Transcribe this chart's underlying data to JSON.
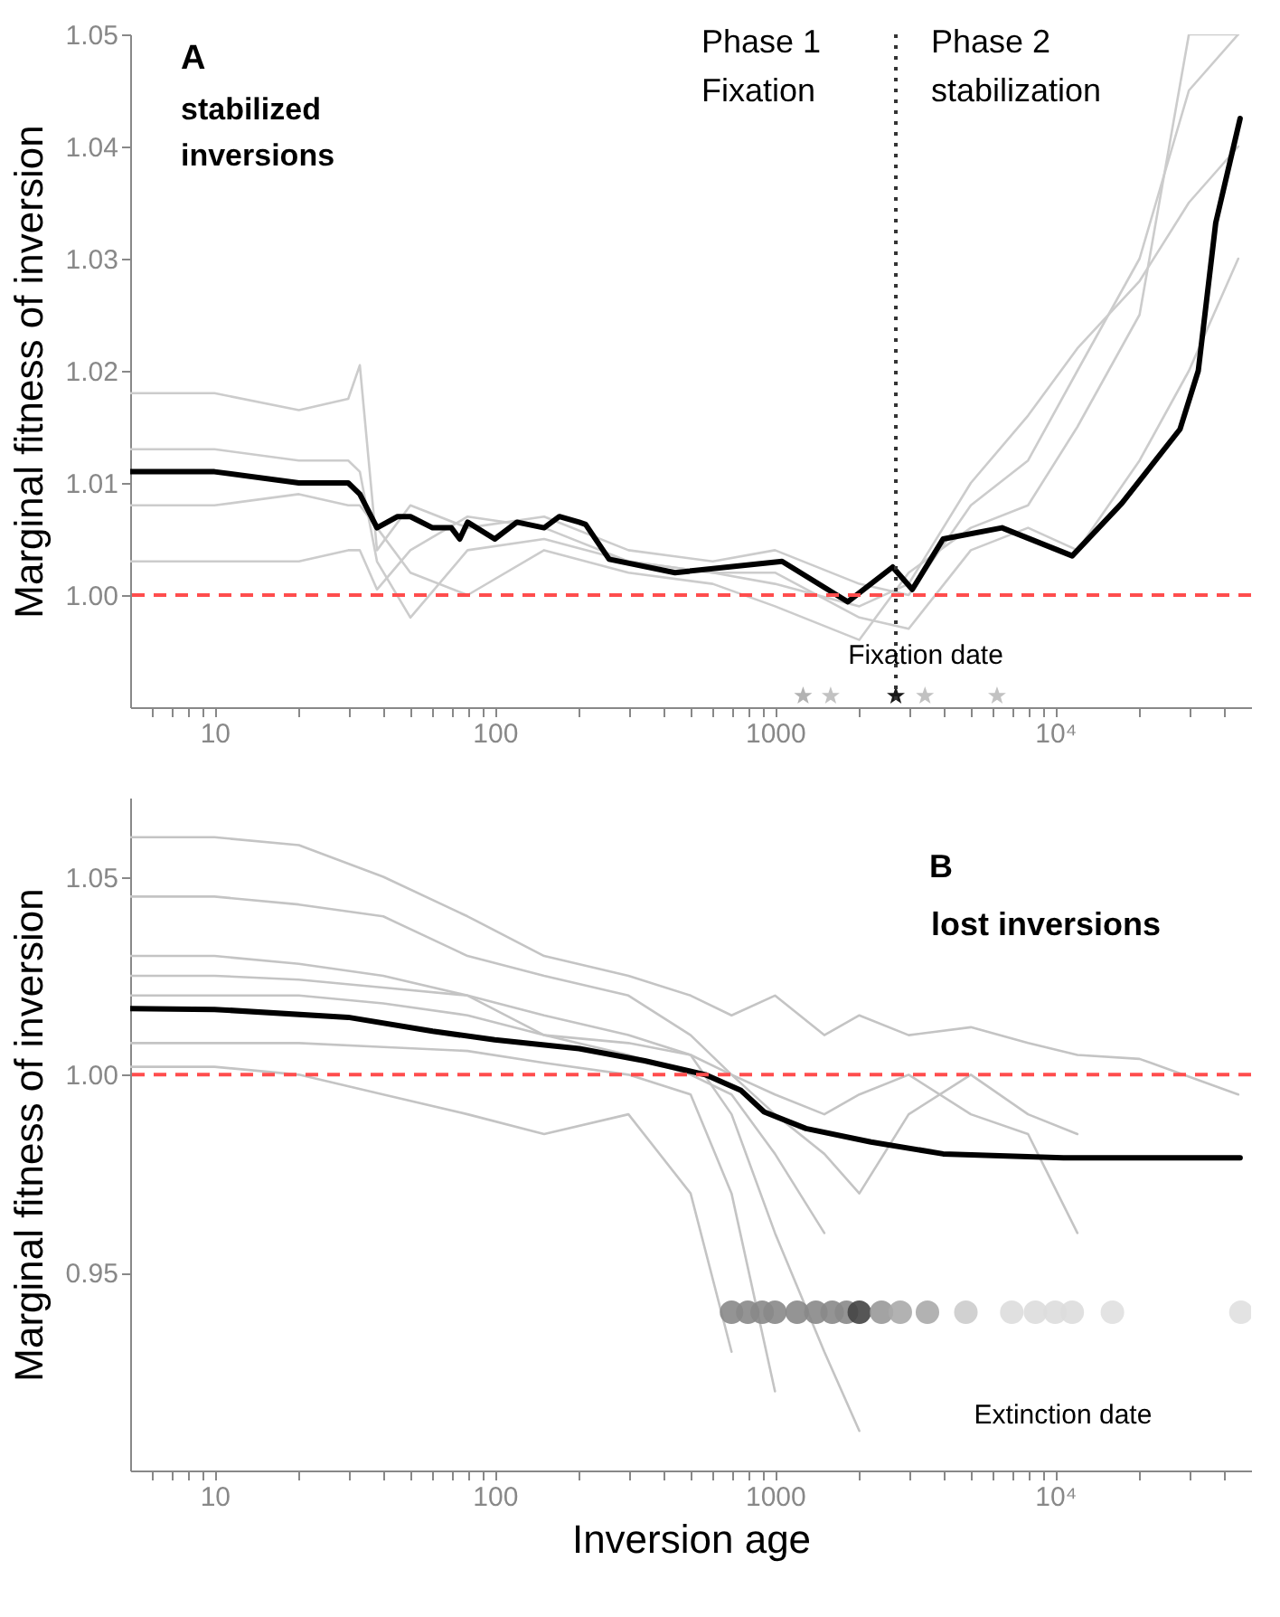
{
  "chart_data": [
    {
      "type": "line",
      "ylabel": "Marginal fitness of inversion",
      "log": "x",
      "xlim": [
        5,
        50000
      ],
      "xticks": [
        {
          "value": 6,
          "label": null
        },
        {
          "value": 7,
          "label": null
        },
        {
          "value": 8,
          "label": null
        },
        {
          "value": 9,
          "label": null
        },
        10,
        {
          "value": 20,
          "label": null
        },
        {
          "value": 30,
          "label": null
        },
        {
          "value": 40,
          "label": null
        },
        {
          "value": 50,
          "label": null
        },
        {
          "value": 60,
          "label": null
        },
        {
          "value": 70,
          "label": null
        },
        {
          "value": 80,
          "label": null
        },
        {
          "value": 90,
          "label": null
        },
        100,
        {
          "value": 200,
          "label": null
        },
        {
          "value": 300,
          "label": null
        },
        {
          "value": 400,
          "label": null
        },
        {
          "value": 500,
          "label": null
        },
        {
          "value": 600,
          "label": null
        },
        {
          "value": 700,
          "label": null
        },
        {
          "value": 800,
          "label": null
        },
        {
          "value": 900,
          "label": null
        },
        1000,
        {
          "value": 2000,
          "label": null
        },
        {
          "value": 3000,
          "label": null
        },
        {
          "value": 4000,
          "label": null
        },
        {
          "value": 5000,
          "label": null
        },
        {
          "value": 6000,
          "label": null
        },
        {
          "value": 7000,
          "label": null
        },
        {
          "value": 8000,
          "label": null
        },
        {
          "value": 9000,
          "label": null
        },
        {
          "value": 10000,
          "label": "10⁴"
        },
        {
          "value": 20000,
          "label": null
        },
        {
          "value": 30000,
          "label": null
        },
        {
          "value": 40000,
          "label": null
        }
      ],
      "ylim": [
        0.99,
        1.05
      ],
      "yticks": [
        {
          "value": 1,
          "label": "1.00"
        },
        1.01,
        1.02,
        1.03,
        1.04,
        1.05
      ],
      "series": [
        {
          "color": "#cccccc",
          "x": [
            5,
            10,
            20,
            30,
            33,
            38,
            50,
            80,
            150,
            300,
            600,
            1000,
            2000,
            3000,
            5000,
            8000,
            12000,
            20000,
            30000,
            45000
          ],
          "values": [
            1.018,
            1.018,
            1.0165,
            1.0175,
            1.0205,
            1.004,
            1.008,
            1.006,
            1.007,
            1.004,
            1.003,
            1.004,
            1.001,
            1.0,
            1.008,
            1.012,
            1.02,
            1.03,
            1.045,
            1.05
          ]
        },
        {
          "color": "#cccccc",
          "x": [
            5,
            10,
            20,
            30,
            33,
            38,
            50,
            80,
            150,
            300,
            600,
            1000,
            2000,
            3000,
            5000,
            8000,
            12000,
            20000,
            30000,
            45000
          ],
          "values": [
            1.013,
            1.013,
            1.012,
            1.012,
            1.011,
            1.003,
            0.998,
            1.004,
            1.005,
            1.003,
            1.002,
            1.002,
            0.998,
            0.997,
            1.004,
            1.006,
            1.004,
            1.012,
            1.02,
            1.03
          ]
        },
        {
          "color": "#cccccc",
          "x": [
            5,
            10,
            20,
            30,
            33,
            38,
            50,
            80,
            150,
            300,
            600,
            1000,
            2000,
            3000,
            5000,
            8000,
            12000,
            20000,
            30000,
            45000
          ],
          "values": [
            1.008,
            1.008,
            1.009,
            1.008,
            1.008,
            1.006,
            1.002,
            1.0,
            1.004,
            1.002,
            1.001,
            0.999,
            0.996,
            1.002,
            1.006,
            1.008,
            1.015,
            1.025,
            1.05,
            1.05
          ]
        },
        {
          "color": "#cccccc",
          "x": [
            5,
            10,
            20,
            30,
            33,
            38,
            50,
            80,
            150,
            300,
            600,
            1000,
            2000,
            3000,
            5000,
            8000,
            12000,
            20000,
            30000,
            45000
          ],
          "values": [
            1.003,
            1.003,
            1.003,
            1.004,
            1.004,
            1.0005,
            1.004,
            1.007,
            1.006,
            1.003,
            1.002,
            1.001,
            0.999,
            1.001,
            1.01,
            1.016,
            1.022,
            1.028,
            1.035,
            1.04
          ]
        },
        {
          "color": "#000000",
          "x": [
            5,
            10,
            20,
            30,
            33,
            38,
            45,
            50,
            60,
            70,
            75,
            80,
            100,
            120,
            150,
            170,
            200,
            211,
            256,
            440,
            1060,
            1820,
            2630,
            3090,
            3980,
            6460,
            11500,
            17300,
            27900,
            32400,
            37400,
            45700
          ],
          "values": [
            1.011,
            1.011,
            1.01,
            1.01,
            1.009,
            1.006,
            1.007,
            1.007,
            1.006,
            1.006,
            1.005,
            1.0065,
            1.005,
            1.0065,
            1.006,
            1.007,
            1.0065,
            1.0063,
            1.0032,
            1.002,
            1.003,
            0.9994,
            1.0025,
            1.0005,
            1.005,
            1.006,
            1.0035,
            1.0082,
            1.0148,
            1.02,
            1.0332,
            1.0425
          ]
        },
        {
          "type": "scatter",
          "marker": "star",
          "x": [
            1260,
            1580,
            2700,
            3430,
            6200
          ],
          "values": [
            0.991,
            0.991,
            0.991,
            0.991,
            0.991
          ],
          "colors": [
            "#aaaaaa",
            "#bbbbbb",
            "#000000",
            "#bbbbbb",
            "#bbbbbb"
          ]
        }
      ],
      "ref_lines": [
        {
          "axis": "y",
          "value": 1,
          "color": "#ff4d4d",
          "line_style": "dashed"
        },
        {
          "axis": "x",
          "value": 2700,
          "color": "#333333",
          "line_style": "dotted"
        }
      ],
      "annotations": [
        "A",
        "stabilized\ninversions",
        "Phase 1\nFixation",
        "Phase 2\nstabilization",
        "Fixation date"
      ]
    },
    {
      "type": "line",
      "xlabel": "Inversion age",
      "ylabel": "Marginal fitness of inversion",
      "log": "x",
      "xlim": [
        5,
        50000
      ],
      "xticks": [
        {
          "value": 6,
          "label": null
        },
        {
          "value": 7,
          "label": null
        },
        {
          "value": 8,
          "label": null
        },
        {
          "value": 9,
          "label": null
        },
        10,
        {
          "value": 20,
          "label": null
        },
        {
          "value": 30,
          "label": null
        },
        {
          "value": 40,
          "label": null
        },
        {
          "value": 50,
          "label": null
        },
        {
          "value": 60,
          "label": null
        },
        {
          "value": 70,
          "label": null
        },
        {
          "value": 80,
          "label": null
        },
        {
          "value": 90,
          "label": null
        },
        100,
        {
          "value": 200,
          "label": null
        },
        {
          "value": 300,
          "label": null
        },
        {
          "value": 400,
          "label": null
        },
        {
          "value": 500,
          "label": null
        },
        {
          "value": 600,
          "label": null
        },
        {
          "value": 700,
          "label": null
        },
        {
          "value": 800,
          "label": null
        },
        {
          "value": 900,
          "label": null
        },
        1000,
        {
          "value": 2000,
          "label": null
        },
        {
          "value": 3000,
          "label": null
        },
        {
          "value": 4000,
          "label": null
        },
        {
          "value": 5000,
          "label": null
        },
        {
          "value": 6000,
          "label": null
        },
        {
          "value": 7000,
          "label": null
        },
        {
          "value": 8000,
          "label": null
        },
        {
          "value": 9000,
          "label": null
        },
        {
          "value": 10000,
          "label": "10⁴"
        },
        {
          "value": 20000,
          "label": null
        },
        {
          "value": 30000,
          "label": null
        },
        {
          "value": 40000,
          "label": null
        }
      ],
      "ylim": [
        0.9,
        1.07
      ],
      "yticks": [
        0.95,
        {
          "value": 1,
          "label": "1.00"
        },
        1.05
      ],
      "series": [
        {
          "color": "#c4c4c4",
          "x": [
            5,
            10,
            20,
            40,
            80,
            150,
            300,
            500,
            700,
            1000,
            1500,
            2000,
            3000,
            5000,
            8000,
            12000,
            20000,
            45000
          ],
          "values": [
            1.06,
            1.06,
            1.058,
            1.05,
            1.04,
            1.03,
            1.025,
            1.02,
            1.015,
            1.02,
            1.01,
            1.015,
            1.01,
            1.012,
            1.008,
            1.005,
            1.004,
            0.995
          ]
        },
        {
          "color": "#c4c4c4",
          "x": [
            5,
            10,
            20,
            40,
            80,
            150,
            300,
            500,
            700,
            1000,
            1500,
            2000,
            3000,
            5000,
            8000,
            12000
          ],
          "values": [
            1.045,
            1.045,
            1.043,
            1.04,
            1.03,
            1.025,
            1.02,
            1.01,
            1.0,
            0.99,
            0.98,
            0.97,
            0.99,
            1.0,
            0.99,
            0.985
          ]
        },
        {
          "color": "#c4c4c4",
          "x": [
            5,
            10,
            20,
            40,
            80,
            150,
            300,
            500,
            700,
            1000,
            1500,
            2000
          ],
          "values": [
            1.03,
            1.03,
            1.028,
            1.025,
            1.02,
            1.015,
            1.01,
            1.005,
            0.99,
            0.96,
            0.93,
            0.91
          ]
        },
        {
          "color": "#c4c4c4",
          "x": [
            5,
            10,
            20,
            40,
            80,
            150,
            300,
            500,
            700,
            1000,
            1500
          ],
          "values": [
            1.02,
            1.02,
            1.02,
            1.018,
            1.015,
            1.01,
            1.005,
            1.0,
            0.995,
            0.98,
            0.96
          ]
        },
        {
          "color": "#c4c4c4",
          "x": [
            5,
            10,
            20,
            40,
            80,
            150,
            300,
            500,
            700,
            1000
          ],
          "values": [
            1.008,
            1.008,
            1.008,
            1.007,
            1.006,
            1.003,
            1.0,
            0.995,
            0.97,
            0.92
          ]
        },
        {
          "color": "#c4c4c4",
          "x": [
            5,
            10,
            20,
            40,
            80,
            150,
            300,
            500,
            700
          ],
          "values": [
            1.002,
            1.002,
            1.0,
            0.995,
            0.99,
            0.985,
            0.99,
            0.97,
            0.93
          ]
        },
        {
          "color": "#c4c4c4",
          "x": [
            5,
            10,
            20,
            40,
            80,
            150,
            300,
            500,
            700,
            1000,
            1500,
            2000,
            3000,
            5000,
            8000,
            12000
          ],
          "values": [
            1.025,
            1.025,
            1.024,
            1.022,
            1.02,
            1.01,
            1.008,
            1.005,
            1.0,
            0.995,
            0.99,
            0.995,
            1.0,
            0.99,
            0.985,
            0.96
          ]
        },
        {
          "color": "#000000",
          "x": [
            5,
            10,
            30,
            60,
            100,
            200,
            343,
            564,
            757,
            915,
            1290,
            2200,
            3980,
            10700,
            45700
          ],
          "values": [
            1.0167,
            1.0165,
            1.0145,
            1.011,
            1.0088,
            1.0066,
            1.0035,
            1.0,
            0.996,
            0.9906,
            0.9864,
            0.983,
            0.98,
            0.979,
            0.979
          ]
        },
        {
          "type": "scatter",
          "marker": "circle",
          "x": [
            700,
            800,
            900,
            1000,
            1200,
            1400,
            1600,
            1800,
            2000,
            2400,
            2800,
            3500,
            4800,
            7000,
            8500,
            10000,
            11500,
            16000,
            46000
          ],
          "values": [
            0.94,
            0.94,
            0.94,
            0.94,
            0.94,
            0.94,
            0.94,
            0.94,
            0.94,
            0.94,
            0.94,
            0.94,
            0.94,
            0.94,
            0.94,
            0.94,
            0.94,
            0.94,
            0.94
          ],
          "colors": [
            "#888888",
            "#888888",
            "#888888",
            "#888888",
            "#888888",
            "#888888",
            "#888888",
            "#888888",
            "#444444",
            "#999999",
            "#aaaaaa",
            "#aaaaaa",
            "#cccccc",
            "#dddddd",
            "#dddddd",
            "#dddddd",
            "#dddddd",
            "#e0e0e0",
            "#e0e0e0"
          ]
        }
      ],
      "ref_lines": [
        {
          "axis": "y",
          "value": 1,
          "color": "#ff4d4d",
          "line_style": "dashed"
        }
      ],
      "annotations": [
        "B",
        "lost inversions",
        "Extinction date"
      ]
    }
  ]
}
